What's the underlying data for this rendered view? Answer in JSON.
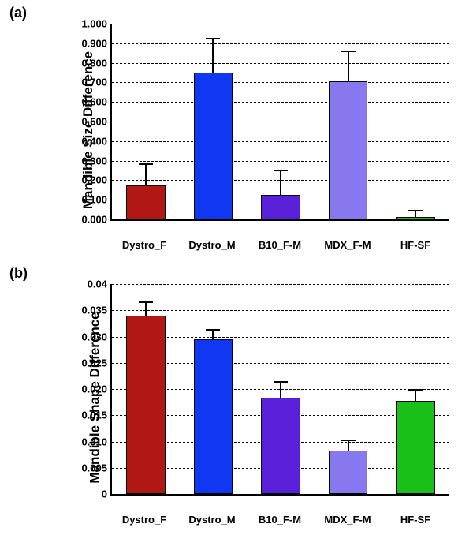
{
  "categories": [
    "Dystro_F",
    "Dystro_M",
    "B10_F-M",
    "MDX_F-M",
    "HF-SF"
  ],
  "bar_colors": [
    "#b01814",
    "#1038f2",
    "#5920d8",
    "#8878f0",
    "#18c018"
  ],
  "panel_a": {
    "label": "(a)",
    "ylabel": "Mandible Size Difference",
    "ymin": 0.0,
    "ymax": 1.0,
    "ytick_step": 0.1,
    "tick_decimals": 3,
    "values": [
      0.175,
      0.75,
      0.125,
      0.705,
      0.012
    ],
    "errors": [
      0.115,
      0.18,
      0.14,
      0.16,
      0.115
    ]
  },
  "panel_b": {
    "label": "(b)",
    "ylabel": "Mandible Shape Difference",
    "ymin": 0.0,
    "ymax": 0.04,
    "ytick_step": 0.005,
    "tick_decimals": 3,
    "values": [
      0.034,
      0.0295,
      0.0183,
      0.0082,
      0.0178
    ],
    "errors": [
      0.0027,
      0.002,
      0.0032,
      0.0022,
      0.0022
    ]
  },
  "style": {
    "label_fontsize": 18,
    "ylabel_fontsize": 17,
    "tick_fontsize": 13,
    "grid_dash": "dashed",
    "background": "#ffffff",
    "axis_color": "#000000",
    "bar_width": 0.58
  }
}
